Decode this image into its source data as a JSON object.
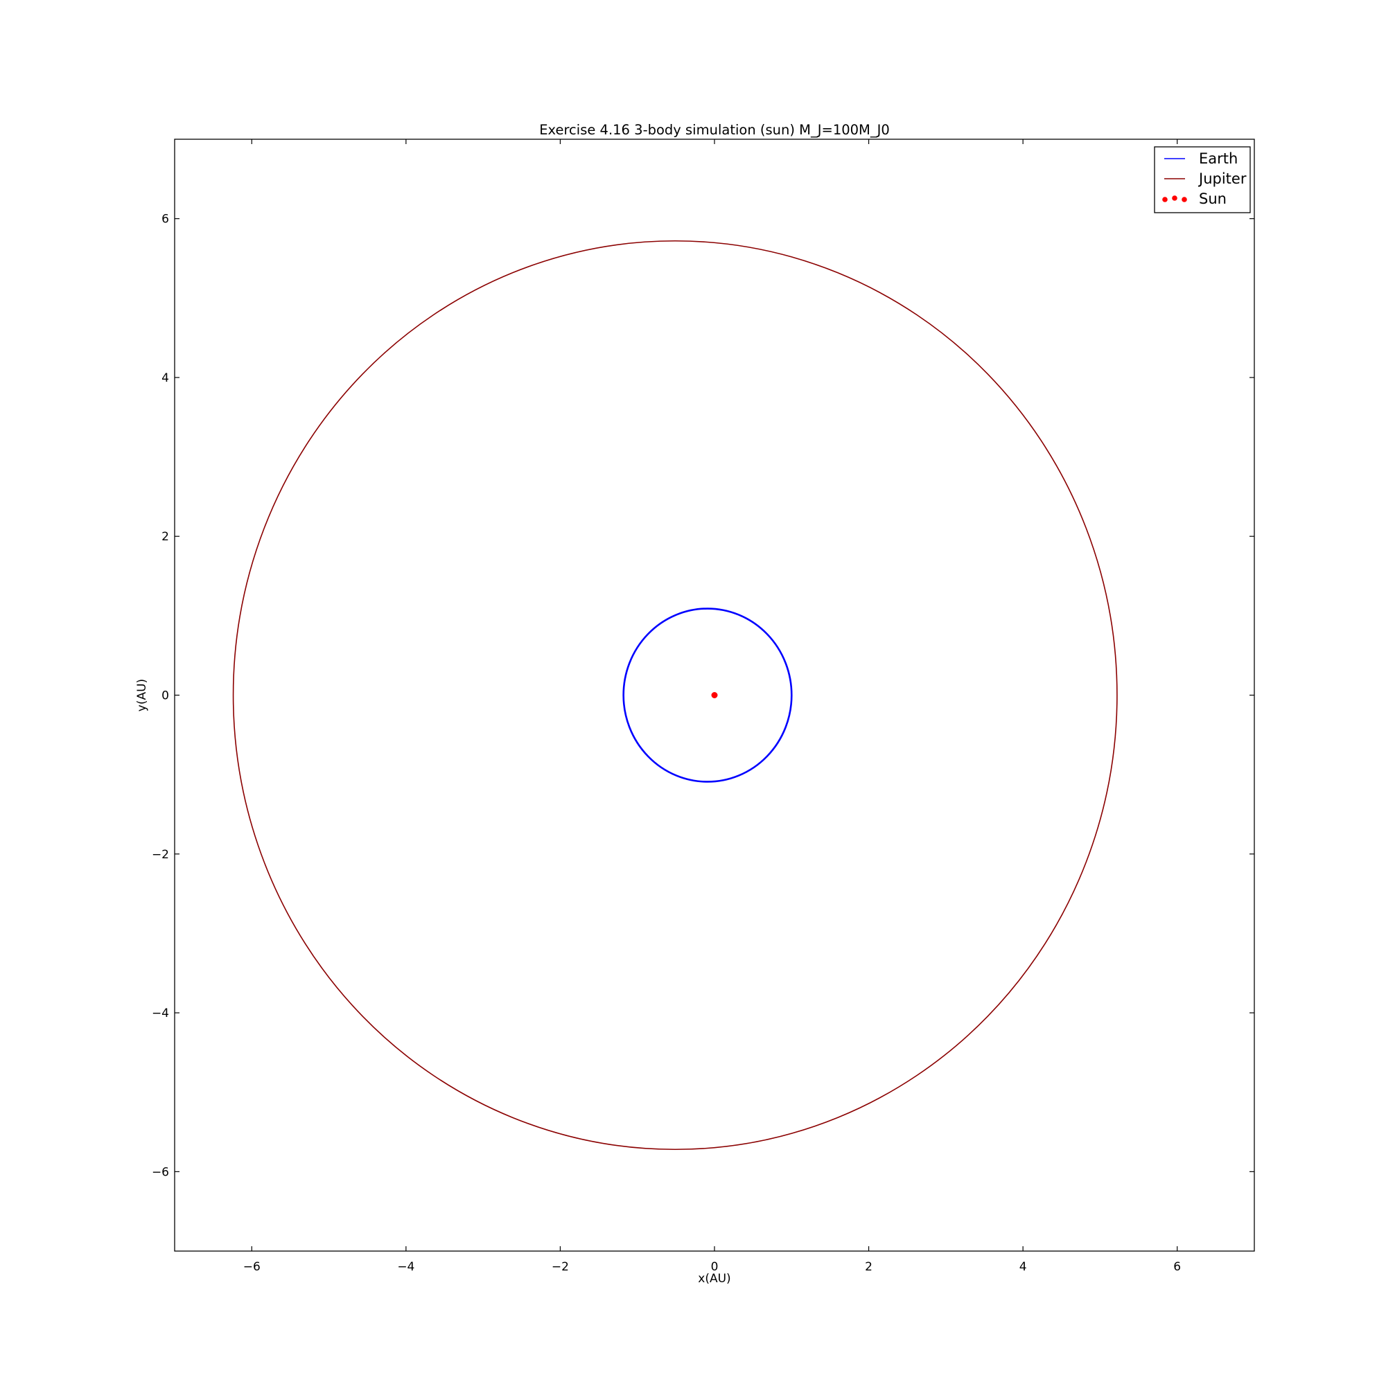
{
  "chart_data": {
    "type": "line",
    "title": "Exercise 4.16 3-body simulation (sun) M_J=100M_J0",
    "xlabel": "x(AU)",
    "ylabel": "y(AU)",
    "xlim": [
      -7,
      7
    ],
    "ylim": [
      -7,
      7
    ],
    "xticks": [
      -6,
      -4,
      -2,
      0,
      2,
      4,
      6
    ],
    "yticks": [
      -6,
      -4,
      -2,
      0,
      2,
      4,
      6
    ],
    "xtick_labels": [
      "−6",
      "−4",
      "−2",
      "0",
      "2",
      "4",
      "6"
    ],
    "ytick_labels": [
      "−6",
      "−4",
      "−2",
      "0",
      "2",
      "4",
      "6"
    ],
    "grid": false,
    "legend_position": "top-right",
    "series": [
      {
        "name": "Earth",
        "kind": "orbit",
        "color": "#0000ff",
        "center": [
          -0.09,
          0.0
        ],
        "semi_axis_x": 1.09,
        "semi_axis_y": 1.09
      },
      {
        "name": "Jupiter",
        "kind": "orbit",
        "color": "#8b0000",
        "center": [
          -0.51,
          0.0
        ],
        "semi_axis_x": 5.73,
        "semi_axis_y": 5.72
      },
      {
        "name": "Sun",
        "kind": "point",
        "color": "#ff0000",
        "x": [
          0.0
        ],
        "y": [
          0.0
        ]
      }
    ]
  }
}
